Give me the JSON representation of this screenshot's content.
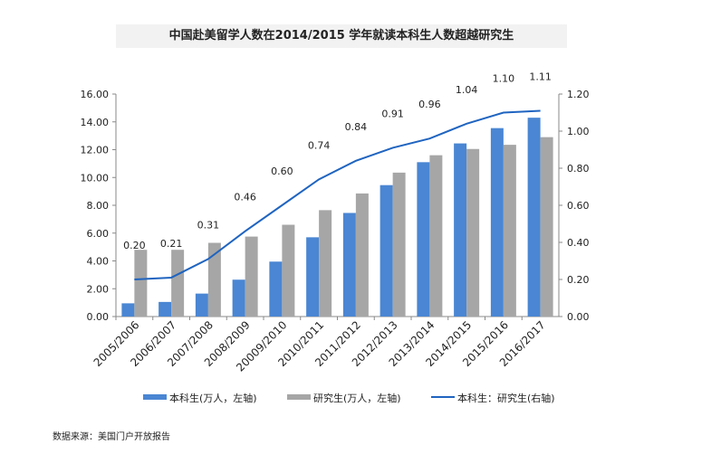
{
  "title": "中国赴美留学人数在2014/2015 学年就读本科生人数超越研究生",
  "source": "数据来源：美国门户开放报告",
  "colors": {
    "bar1": "#4a86d3",
    "bar2": "#a6a6a6",
    "line": "#1f64c0"
  },
  "chart_data": {
    "type": "bar",
    "categories": [
      "2005/2006",
      "2006/2007",
      "2007/2008",
      "2008/2009",
      "20009/2010",
      "2010/2011",
      "2011/2012",
      "2012/2013",
      "2013/2014",
      "2014/2015",
      "2015/2016",
      "2016/2017"
    ],
    "series": [
      {
        "name": "本科生(万人，左轴)",
        "type": "bar",
        "axis": "left",
        "values": [
          0.95,
          1.05,
          1.65,
          2.65,
          3.95,
          5.7,
          7.45,
          9.45,
          11.1,
          12.45,
          13.55,
          14.3
        ]
      },
      {
        "name": "研究生(万人，左轴)",
        "type": "bar",
        "axis": "left",
        "values": [
          4.8,
          4.8,
          5.3,
          5.75,
          6.6,
          7.65,
          8.85,
          10.35,
          11.6,
          12.05,
          12.35,
          12.9
        ]
      },
      {
        "name": "本科生：研究生(右轴)",
        "type": "line",
        "axis": "right",
        "values": [
          0.2,
          0.21,
          0.31,
          0.46,
          0.6,
          0.74,
          0.84,
          0.91,
          0.96,
          1.04,
          1.1,
          1.11
        ],
        "labels": [
          "0.20",
          "0.21",
          "0.31",
          "0.46",
          "0.60",
          "0.74",
          "0.84",
          "0.91",
          "0.96",
          "1.04",
          "1.10",
          "1.11"
        ]
      }
    ],
    "ylim": [
      0,
      16
    ],
    "yticks": [
      "0.00",
      "2.00",
      "4.00",
      "6.00",
      "8.00",
      "10.00",
      "12.00",
      "14.00",
      "16.00"
    ],
    "y2lim": [
      0,
      1.2
    ],
    "y2ticks": [
      "0.00",
      "0.20",
      "0.40",
      "0.60",
      "0.80",
      "1.00",
      "1.20"
    ],
    "grid": false,
    "legend": "bottom"
  }
}
